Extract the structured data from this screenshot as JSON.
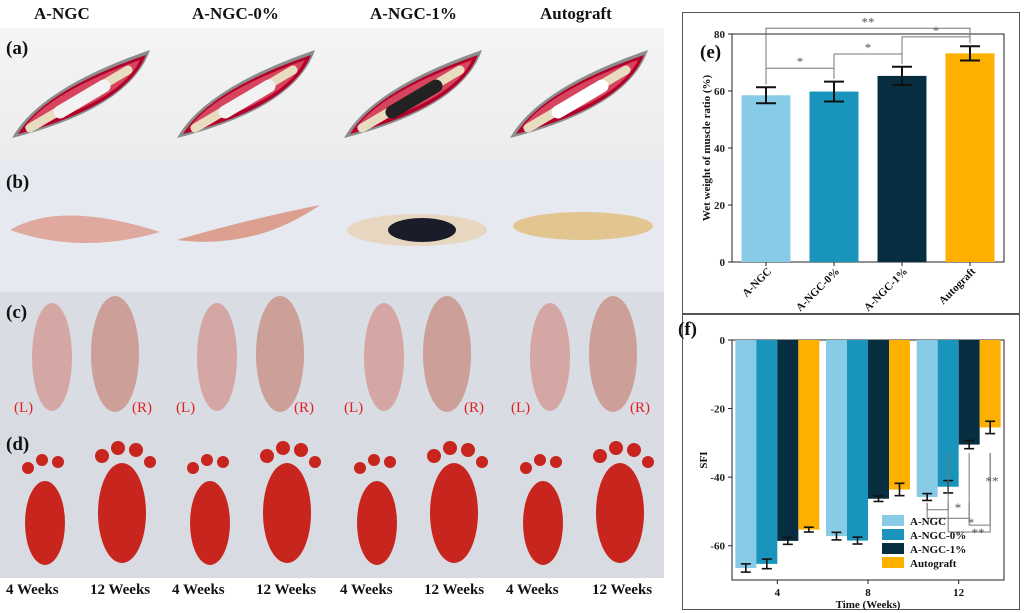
{
  "figure": {
    "column_headers": [
      "A-NGC",
      "A-NGC-0%",
      "A-NGC-1%",
      "Autograft"
    ],
    "row_labels": [
      "(a)",
      "(b)",
      "(c)",
      "(d)"
    ],
    "side_labels": [
      "(L)",
      "(R)"
    ],
    "bottom_labels": [
      "4 Weeks",
      "12 Weeks",
      "4 Weeks",
      "12 Weeks",
      "4 Weeks",
      "12 Weeks",
      "4 Weeks",
      "12 Weeks"
    ]
  },
  "chart_data": [
    {
      "type": "bar",
      "panel_label": "(e)",
      "categories": [
        "A-NGC",
        "A-NGC-0%",
        "A-NGC-1%",
        "Autograft"
      ],
      "values": [
        58.5,
        59.8,
        65.3,
        73.2
      ],
      "errors": [
        2.8,
        3.5,
        3.2,
        2.5
      ],
      "colors": [
        "#87cbe6",
        "#1995bd",
        "#062d40",
        "#fdb000"
      ],
      "ylabel": "Wet weight of muscle ratio (%)",
      "ylim": [
        0,
        80
      ],
      "yticks": [
        0,
        20,
        40,
        60,
        80
      ],
      "significance": [
        {
          "from": "A-NGC",
          "to": "A-NGC-0%",
          "label": "*"
        },
        {
          "from": "A-NGC-0%",
          "to": "A-NGC-1%",
          "label": "*"
        },
        {
          "from": "A-NGC-1%",
          "to": "Autograft",
          "label": "*"
        },
        {
          "from": "A-NGC",
          "to": "Autograft",
          "label": "**"
        }
      ]
    },
    {
      "type": "bar",
      "panel_label": "(f)",
      "x": [
        "4",
        "8",
        "12"
      ],
      "xlabel": "Time (Weeks)",
      "ylabel": "SFI",
      "ylim": [
        -70,
        0
      ],
      "yticks": [
        0,
        -20,
        -40,
        -60
      ],
      "series": [
        {
          "name": "A-NGC",
          "color": "#87cbe6",
          "values": [
            -66.5,
            -57.2,
            -45.8
          ],
          "errors": [
            1.2,
            1.1,
            1.0
          ]
        },
        {
          "name": "A-NGC-0%",
          "color": "#1995bd",
          "values": [
            -65.3,
            -58.5,
            -42.8
          ],
          "errors": [
            1.4,
            1.0,
            1.8
          ]
        },
        {
          "name": "A-NGC-1%",
          "color": "#062d40",
          "values": [
            -58.6,
            -46.3,
            -30.5
          ],
          "errors": [
            1.0,
            0.8,
            1.2
          ]
        },
        {
          "name": "Autograft",
          "color": "#fdb000",
          "values": [
            -55.3,
            -43.6,
            -25.5
          ],
          "errors": [
            0.7,
            1.8,
            1.8
          ]
        }
      ],
      "significance_labels": [
        "*",
        "*",
        "**",
        "**"
      ]
    }
  ]
}
